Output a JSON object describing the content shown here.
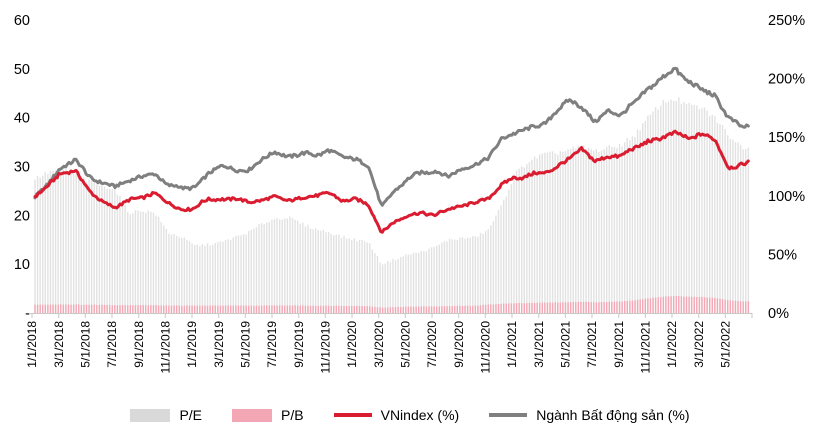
{
  "chart": {
    "legend": [
      {
        "label": "P/E",
        "swatch": "bar",
        "color": "#d9d9d9"
      },
      {
        "label": "P/B",
        "swatch": "bar",
        "color": "#f3a7b4"
      },
      {
        "label": "VNindex (%)",
        "swatch": "line",
        "color": "#d91c30"
      },
      {
        "label": "Ngành Bất động sản (%)",
        "swatch": "line",
        "color": "#7f7f7f"
      }
    ]
  },
  "chart_data": {
    "type": "combo_bar_line",
    "title": "",
    "x_unit": "month",
    "months": [
      "1/2018",
      "2/2018",
      "3/2018",
      "4/2018",
      "5/2018",
      "6/2018",
      "7/2018",
      "8/2018",
      "9/2018",
      "10/2018",
      "11/2018",
      "12/2018",
      "1/2019",
      "2/2019",
      "3/2019",
      "4/2019",
      "5/2019",
      "6/2019",
      "7/2019",
      "8/2019",
      "9/2019",
      "10/2019",
      "11/2019",
      "12/2019",
      "1/2020",
      "2/2020",
      "3/2020",
      "4/2020",
      "5/2020",
      "6/2020",
      "7/2020",
      "8/2020",
      "9/2020",
      "10/2020",
      "11/2020",
      "12/2020",
      "1/2021",
      "2/2021",
      "3/2021",
      "4/2021",
      "5/2021",
      "6/2021",
      "7/2021",
      "8/2021",
      "9/2021",
      "10/2021",
      "11/2021",
      "12/2021",
      "1/2022",
      "2/2022",
      "3/2022",
      "4/2022",
      "5/2022",
      "6/2022"
    ],
    "x_tick_labels": [
      "1/1/2018",
      "3/1/2018",
      "5/1/2018",
      "7/1/2018",
      "9/1/2018",
      "11/1/2018",
      "1/1/2019",
      "3/1/2019",
      "5/1/2019",
      "7/1/2019",
      "9/1/2019",
      "11/1/2019",
      "1/1/2020",
      "3/1/2020",
      "5/1/2020",
      "7/1/2020",
      "9/1/2020",
      "11/1/2020",
      "1/1/2021",
      "3/1/2021",
      "5/1/2021",
      "7/1/2021",
      "9/1/2021",
      "11/1/2021",
      "1/1/2022",
      "3/1/2022",
      "5/1/2022"
    ],
    "left_axis": {
      "min": 0,
      "max": 60,
      "ticks": [
        "60",
        "50",
        "40",
        "30",
        "20",
        "10",
        "-"
      ]
    },
    "right_axis": {
      "min": 0,
      "max": 250,
      "ticks": [
        "250%",
        "200%",
        "150%",
        "100%",
        "50%",
        "0%"
      ]
    },
    "axis_color": "#c9c9c9",
    "text_color": "#000000",
    "series": [
      {
        "key": "pe",
        "name": "P/E",
        "type": "bar",
        "axis": "left",
        "color": "#e2e2e2",
        "values": [
          27.5,
          28.8,
          29.5,
          28.5,
          27,
          26,
          25.5,
          20.5,
          21,
          20.5,
          16.5,
          15.5,
          13.8,
          14,
          14.5,
          15.5,
          16.5,
          18.2,
          19.3,
          19.6,
          18.3,
          17.2,
          16.6,
          15.6,
          15,
          14.6,
          10,
          11,
          12,
          12.5,
          13.5,
          15,
          15.3,
          15.5,
          17,
          22,
          28.5,
          31,
          32.4,
          32.7,
          33.4,
          34,
          33.2,
          33.8,
          34.5,
          36.5,
          40,
          43,
          44,
          42.5,
          42,
          40,
          36.5,
          34
        ]
      },
      {
        "key": "pb",
        "name": "P/B",
        "type": "bar",
        "axis": "left",
        "color": "#f3a7b4",
        "values": [
          1.7,
          1.72,
          1.75,
          1.72,
          1.68,
          1.65,
          1.62,
          1.6,
          1.62,
          1.6,
          1.55,
          1.52,
          1.5,
          1.52,
          1.53,
          1.52,
          1.5,
          1.52,
          1.55,
          1.55,
          1.52,
          1.5,
          1.5,
          1.48,
          1.45,
          1.42,
          1.1,
          1.2,
          1.3,
          1.35,
          1.35,
          1.4,
          1.45,
          1.5,
          1.7,
          1.9,
          2,
          2.05,
          2.1,
          2.15,
          2.2,
          2.3,
          2.2,
          2.3,
          2.35,
          2.6,
          3,
          3.3,
          3.5,
          3.3,
          3.3,
          3.1,
          2.6,
          2.4
        ]
      },
      {
        "key": "vnindex",
        "name": "VNindex (%)",
        "type": "line",
        "axis": "right",
        "color": "#d91c30",
        "values": [
          100,
          110,
          118,
          122,
          106,
          97,
          91,
          95,
          99,
          101,
          93,
          89,
          90,
          97,
          98,
          97,
          96,
          95,
          99,
          97,
          99,
          99,
          101,
          96,
          97,
          93,
          69,
          77,
          84,
          86,
          83,
          87,
          90,
          93,
          99,
          110,
          115,
          118,
          119,
          124,
          132,
          141,
          131,
          133,
          135,
          140,
          148,
          150,
          153,
          150,
          152,
          146,
          124,
          128
        ]
      },
      {
        "key": "bds",
        "name": "Ngành Bất động sản (%)",
        "type": "line",
        "axis": "right",
        "color": "#7f7f7f",
        "values": [
          100,
          112,
          123,
          131,
          117,
          112,
          108,
          113,
          117,
          119,
          110,
          106,
          108,
          118,
          124,
          122,
          121,
          130,
          136,
          134,
          137,
          135,
          140,
          134,
          130,
          126,
          90,
          103,
          114,
          119,
          121,
          116,
          123,
          126,
          134,
          149,
          152,
          156,
          160,
          172,
          181,
          176,
          165,
          174,
          170,
          178,
          192,
          202,
          210,
          196,
          192,
          186,
          168,
          157
        ]
      }
    ]
  }
}
